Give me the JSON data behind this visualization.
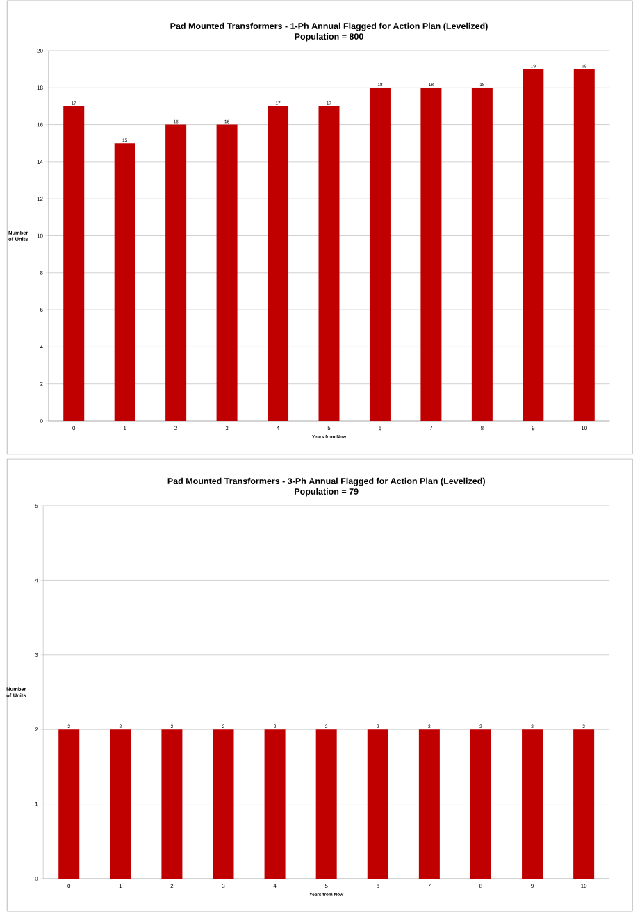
{
  "chart_data": [
    {
      "type": "bar",
      "title": "Pad Mounted Transformers - 1-Ph Annual Flagged for Action Plan (Levelized)",
      "subtitle": "Population = 800",
      "xlabel": "Years from Now",
      "ylabel": "Number of Units",
      "categories": [
        "0",
        "1",
        "2",
        "3",
        "4",
        "5",
        "6",
        "7",
        "8",
        "9",
        "10"
      ],
      "values": [
        17,
        15,
        16,
        16,
        17,
        17,
        18,
        18,
        18,
        19,
        19
      ],
      "color": "#c00000",
      "ylim": [
        0,
        20
      ],
      "yticks": [
        0,
        2,
        4,
        6,
        8,
        10,
        12,
        14,
        16,
        18,
        20
      ],
      "grid": "y",
      "data_labels": true
    },
    {
      "type": "bar",
      "title": "Pad Mounted Transformers - 3-Ph Annual Flagged for Action Plan (Levelized)",
      "subtitle": "Population = 79",
      "xlabel": "Years from Now",
      "ylabel": "Number of Units",
      "categories": [
        "0",
        "1",
        "2",
        "3",
        "4",
        "5",
        "6",
        "7",
        "8",
        "9",
        "10"
      ],
      "values": [
        2,
        2,
        2,
        2,
        2,
        2,
        2,
        2,
        2,
        2,
        2
      ],
      "color": "#c00000",
      "ylim": [
        0,
        5
      ],
      "yticks": [
        0,
        1,
        2,
        3,
        4,
        5
      ],
      "grid": "y",
      "data_labels": true
    }
  ]
}
